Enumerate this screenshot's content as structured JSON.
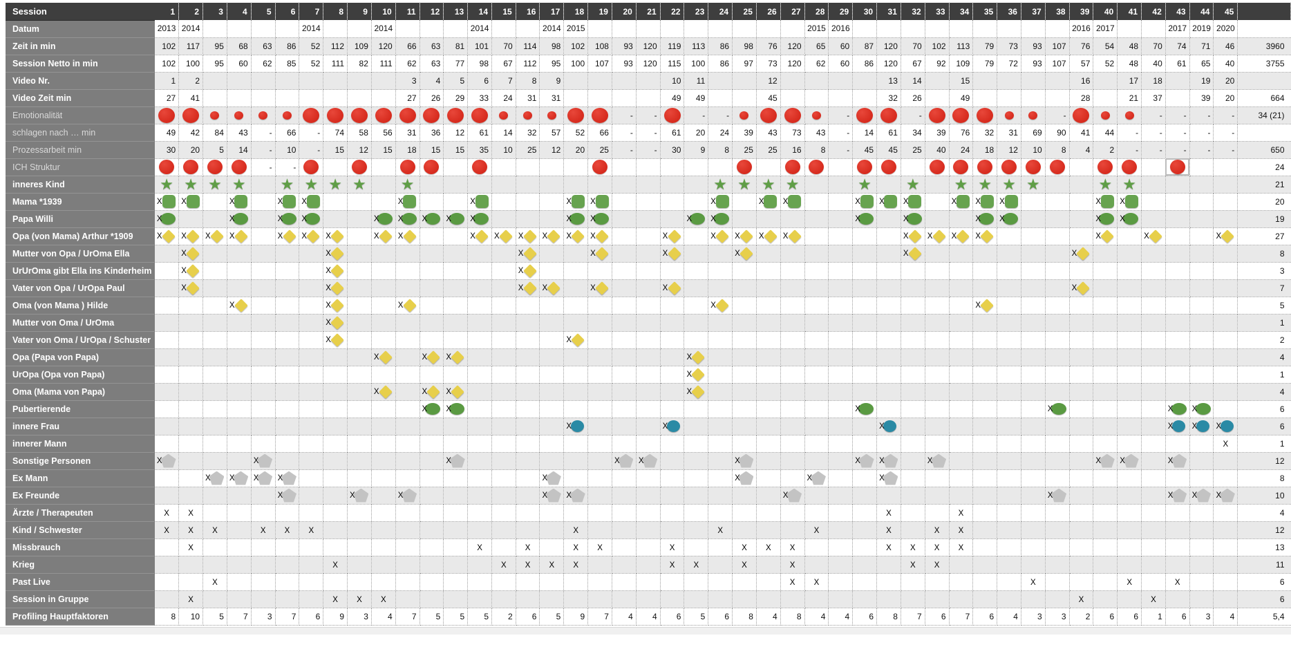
{
  "header": {
    "title": "Session",
    "columns": [
      "1",
      "2",
      "3",
      "4",
      "5",
      "6",
      "7",
      "8",
      "9",
      "10",
      "11",
      "12",
      "13",
      "14",
      "15",
      "16",
      "17",
      "18",
      "19",
      "20",
      "21",
      "22",
      "23",
      "24",
      "25",
      "26",
      "27",
      "28",
      "29",
      "30",
      "31",
      "32",
      "33",
      "34",
      "35",
      "36",
      "37",
      "38",
      "39",
      "40",
      "41",
      "42",
      "43",
      "44",
      "45"
    ]
  },
  "colors": {
    "red": "#cf1f12",
    "green_star": "#5f9e46",
    "green_square": "#67a34f",
    "green_oval": "#5a9a42",
    "yellow_diamond": "#e7cf4b",
    "teal": "#2a8aa5",
    "pentagon_gray": "#c3c3c3",
    "label_bg": "#7d7d7d",
    "header_bg": "#3e3e3e",
    "stripe": "#e9e9e9"
  },
  "rows": [
    {
      "id": "datum",
      "label": "Datum",
      "kind": "years",
      "stripe": false,
      "total": "",
      "values": {
        "1": "2013",
        "2": "2014",
        "7": "2014",
        "10": "2014",
        "14": "2014",
        "17": "2014",
        "18": "2015",
        "28": "2015",
        "29": "2016",
        "39": "2016",
        "40": "2017",
        "43": "2017",
        "44": "2019",
        "45": "2020"
      }
    },
    {
      "id": "zeit-in-min",
      "label": "Zeit in min",
      "kind": "numbers",
      "stripe": true,
      "total": "3960",
      "values": [
        "102",
        "117",
        "95",
        "68",
        "63",
        "86",
        "52",
        "112",
        "109",
        "120",
        "66",
        "63",
        "81",
        "101",
        "70",
        "114",
        "98",
        "102",
        "108",
        "93",
        "120",
        "119",
        "113",
        "86",
        "98",
        "76",
        "120",
        "65",
        "60",
        "87",
        "120",
        "70",
        "102",
        "113",
        "79",
        "73",
        "93",
        "107",
        "76",
        "54",
        "48",
        "70",
        "74",
        "71",
        "46"
      ]
    },
    {
      "id": "session-netto",
      "label": "Session Netto in min",
      "kind": "numbers",
      "stripe": false,
      "total": "3755",
      "values": [
        "102",
        "100",
        "95",
        "60",
        "62",
        "85",
        "52",
        "111",
        "82",
        "111",
        "62",
        "63",
        "77",
        "98",
        "67",
        "112",
        "95",
        "100",
        "107",
        "93",
        "120",
        "115",
        "100",
        "86",
        "97",
        "73",
        "120",
        "62",
        "60",
        "86",
        "120",
        "67",
        "92",
        "109",
        "79",
        "72",
        "93",
        "107",
        "57",
        "52",
        "48",
        "40",
        "61",
        "65",
        "40"
      ]
    },
    {
      "id": "video-nr",
      "label": "Video Nr.",
      "kind": "sparse",
      "stripe": true,
      "total": "",
      "values": {
        "1": "1",
        "2": "2",
        "11": "3",
        "12": "4",
        "13": "5",
        "14": "6",
        "15": "7",
        "16": "8",
        "17": "9",
        "22": "10",
        "23": "11",
        "26": "12",
        "31": "13",
        "32": "14",
        "34": "15",
        "39": "16",
        "41": "17",
        "42": "18",
        "44": "19",
        "45": "20"
      }
    },
    {
      "id": "video-zeit",
      "label": "Video Zeit min",
      "kind": "sparse",
      "stripe": false,
      "total": "664",
      "values": {
        "1": "27",
        "2": "41",
        "11": "27",
        "12": "26",
        "13": "29",
        "14": "33",
        "15": "24",
        "16": "31",
        "17": "31",
        "22": "49",
        "23": "49",
        "26": "45",
        "31": "32",
        "32": "26",
        "34": "49",
        "39": "28",
        "41": "21",
        "42": "37",
        "44": "39",
        "45": "20"
      }
    },
    {
      "id": "emotionalitaet",
      "label": "Emotionalität",
      "kind": "bubbles",
      "stripe": true,
      "muted": true,
      "total": "34 (21)",
      "large": [
        1,
        2,
        7,
        8,
        9,
        10,
        11,
        12,
        13,
        14,
        18,
        19,
        22,
        26,
        27,
        30,
        31,
        33,
        34,
        35,
        39
      ],
      "small": [
        3,
        4,
        5,
        6,
        15,
        16,
        17,
        25,
        28,
        36,
        37,
        40,
        41
      ],
      "dashes": [
        20,
        21,
        23,
        24,
        29,
        32,
        38,
        42,
        43,
        44,
        45
      ]
    },
    {
      "id": "schlagen-nach-min",
      "label": "schlagen nach … min",
      "kind": "numbers",
      "stripe": false,
      "muted": true,
      "total": "",
      "values": [
        "49",
        "42",
        "84",
        "43",
        "-",
        "66",
        "-",
        "74",
        "58",
        "56",
        "31",
        "36",
        "12",
        "61",
        "14",
        "32",
        "57",
        "52",
        "66",
        "-",
        "-",
        "61",
        "20",
        "24",
        "39",
        "43",
        "73",
        "43",
        "-",
        "14",
        "61",
        "34",
        "39",
        "76",
        "32",
        "31",
        "69",
        "90",
        "41",
        "44",
        "-",
        "-",
        "-",
        "-",
        "-"
      ]
    },
    {
      "id": "prozessarbeit",
      "label": "Prozessarbeit min",
      "kind": "numbers",
      "stripe": true,
      "muted": true,
      "total": "650",
      "values": [
        "30",
        "20",
        "5",
        "14",
        "-",
        "10",
        "-",
        "15",
        "12",
        "15",
        "18",
        "15",
        "15",
        "35",
        "10",
        "25",
        "12",
        "20",
        "25",
        "-",
        "-",
        "30",
        "9",
        "8",
        "25",
        "25",
        "16",
        "8",
        "-",
        "45",
        "45",
        "25",
        "40",
        "24",
        "18",
        "12",
        "10",
        "8",
        "4",
        "2",
        "-",
        "-",
        "-",
        "-",
        "-"
      ]
    },
    {
      "id": "ich-struktur",
      "label": "ICH Struktur",
      "kind": "circles",
      "stripe": false,
      "muted": true,
      "total": "24",
      "cols": [
        1,
        2,
        3,
        4,
        7,
        9,
        11,
        12,
        14,
        19,
        25,
        27,
        28,
        30,
        31,
        33,
        34,
        35,
        36,
        37,
        38,
        40,
        41,
        43
      ],
      "dashes": [
        5,
        6
      ],
      "selected": 43
    },
    {
      "id": "inneres-kind",
      "label": "inneres Kind",
      "kind": "stars",
      "stripe": true,
      "total": "21",
      "cols": [
        1,
        2,
        3,
        4,
        6,
        7,
        8,
        9,
        11,
        24,
        25,
        26,
        27,
        30,
        32,
        34,
        35,
        36,
        37,
        40,
        41
      ]
    },
    {
      "id": "mama",
      "label": "Mama   *1939",
      "kind": "squares",
      "stripe": false,
      "total": "20",
      "cols": [
        1,
        2,
        4,
        6,
        7,
        11,
        14,
        18,
        19,
        24,
        26,
        27,
        30,
        31,
        32,
        34,
        35,
        36,
        40,
        41
      ]
    },
    {
      "id": "papa-willi",
      "label": "Papa Willi",
      "kind": "ovals",
      "stripe": true,
      "total": "19",
      "cols": [
        1,
        4,
        6,
        7,
        10,
        11,
        12,
        13,
        14,
        18,
        19,
        23,
        24,
        30,
        32,
        35,
        36,
        40,
        41
      ]
    },
    {
      "id": "opa-arthur",
      "label": "Opa (von Mama) Arthur *1909",
      "kind": "diamonds",
      "stripe": false,
      "total": "27",
      "cols": [
        1,
        2,
        3,
        4,
        6,
        7,
        8,
        10,
        11,
        14,
        15,
        16,
        17,
        18,
        19,
        22,
        24,
        25,
        26,
        27,
        32,
        33,
        34,
        35,
        40,
        42,
        45
      ]
    },
    {
      "id": "mutter-von-opa-ella",
      "label": "Mutter von Opa /  UrOma Ella",
      "kind": "diamonds",
      "stripe": true,
      "total": "8",
      "cols": [
        2,
        8,
        16,
        19,
        22,
        25,
        32,
        39
      ]
    },
    {
      "id": "ururoma-kinderheim",
      "label": "UrUrOma gibt Ella ins Kinderheim",
      "kind": "diamonds",
      "stripe": false,
      "total": "3",
      "cols": [
        2,
        8,
        16
      ]
    },
    {
      "id": "vater-von-opa-paul",
      "label": "Vater von Opa / UrOpa Paul",
      "kind": "diamonds",
      "stripe": true,
      "total": "7",
      "cols": [
        2,
        8,
        16,
        17,
        19,
        22,
        39
      ]
    },
    {
      "id": "oma-hilde",
      "label": "Oma (von Mama ) Hilde",
      "kind": "diamonds",
      "stripe": false,
      "total": "5",
      "cols": [
        4,
        8,
        11,
        24,
        35
      ]
    },
    {
      "id": "mutter-von-oma",
      "label": "Mutter von Oma / UrOma",
      "kind": "diamonds",
      "stripe": true,
      "total": "1",
      "cols": [
        8
      ]
    },
    {
      "id": "vater-von-oma-schuster",
      "label": "Vater von Oma / UrOpa / Schuster",
      "kind": "diamonds",
      "stripe": false,
      "total": "2",
      "cols": [
        8,
        18
      ]
    },
    {
      "id": "opa-papa-von-papa",
      "label": "Opa (Papa von Papa)",
      "kind": "diamonds",
      "stripe": true,
      "total": "4",
      "cols": [
        10,
        12,
        13,
        23
      ]
    },
    {
      "id": "uropa-opa-von-papa",
      "label": "UrOpa (Opa von Papa)",
      "kind": "diamonds",
      "stripe": false,
      "total": "1",
      "cols": [
        23
      ]
    },
    {
      "id": "oma-mama-von-papa",
      "label": "Oma (Mama von Papa)",
      "kind": "diamonds",
      "stripe": true,
      "total": "4",
      "cols": [
        10,
        12,
        13,
        23
      ]
    },
    {
      "id": "pubertierende",
      "label": "Pubertierende",
      "kind": "ovals",
      "stripe": false,
      "total": "6",
      "cols": [
        12,
        13,
        30,
        38,
        43,
        44
      ]
    },
    {
      "id": "innere-frau",
      "label": "innere Frau",
      "kind": "teals",
      "stripe": true,
      "total": "6",
      "cols": [
        18,
        22,
        31,
        43,
        44,
        45
      ]
    },
    {
      "id": "innerer-mann",
      "label": "innerer Mann",
      "kind": "xmarks",
      "stripe": false,
      "total": "1",
      "cols": [
        45
      ]
    },
    {
      "id": "sonstige-personen",
      "label": "Sonstige Personen",
      "kind": "pentagons",
      "stripe": true,
      "total": "12",
      "cols": [
        1,
        5,
        13,
        20,
        21,
        25,
        30,
        31,
        33,
        40,
        41,
        43
      ]
    },
    {
      "id": "ex-mann",
      "label": "Ex Mann",
      "kind": "pentagons",
      "stripe": false,
      "total": "8",
      "cols": [
        3,
        4,
        5,
        6,
        17,
        25,
        28,
        31
      ]
    },
    {
      "id": "ex-freunde",
      "label": "Ex Freunde",
      "kind": "pentagons",
      "stripe": true,
      "total": "10",
      "cols": [
        6,
        9,
        11,
        17,
        18,
        27,
        38,
        43,
        44,
        45
      ]
    },
    {
      "id": "aerzte-therapeuten",
      "label": "Ärzte / Therapeuten",
      "kind": "xmarks",
      "stripe": false,
      "total": "4",
      "cols": [
        1,
        2,
        31,
        34
      ]
    },
    {
      "id": "kind-schwester",
      "label": "Kind / Schwester",
      "kind": "xmarks",
      "stripe": true,
      "total": "12",
      "cols": [
        1,
        2,
        3,
        5,
        6,
        7,
        18,
        24,
        28,
        31,
        33,
        34
      ]
    },
    {
      "id": "missbrauch",
      "label": "Missbrauch",
      "kind": "xmarks",
      "stripe": false,
      "total": "13",
      "cols": [
        2,
        14,
        16,
        18,
        19,
        22,
        25,
        26,
        27,
        31,
        32,
        33,
        34
      ]
    },
    {
      "id": "krieg",
      "label": "Krieg",
      "kind": "xmarks",
      "stripe": true,
      "total": "11",
      "cols": [
        8,
        15,
        16,
        17,
        18,
        22,
        23,
        25,
        27,
        32,
        33
      ]
    },
    {
      "id": "past-live",
      "label": "Past Live",
      "kind": "xmarks",
      "stripe": false,
      "total": "6",
      "cols": [
        3,
        27,
        28,
        37,
        41,
        43
      ]
    },
    {
      "id": "session-in-gruppe",
      "label": "Session in Gruppe",
      "kind": "xmarks",
      "stripe": true,
      "total": "6",
      "cols": [
        2,
        8,
        9,
        10,
        39,
        42
      ]
    },
    {
      "id": "profiling-hauptfaktoren",
      "label": "Profiling Hauptfaktoren",
      "kind": "numbers",
      "stripe": false,
      "total": "5,4",
      "values": [
        "8",
        "10",
        "5",
        "7",
        "3",
        "7",
        "6",
        "9",
        "3",
        "4",
        "7",
        "5",
        "5",
        "5",
        "2",
        "6",
        "5",
        "9",
        "7",
        "4",
        "4",
        "6",
        "5",
        "6",
        "8",
        "4",
        "8",
        "4",
        "4",
        "6",
        "8",
        "7",
        "6",
        "7",
        "6",
        "4",
        "3",
        "3",
        "2",
        "6",
        "6",
        "1",
        "6",
        "3",
        "4"
      ]
    }
  ]
}
